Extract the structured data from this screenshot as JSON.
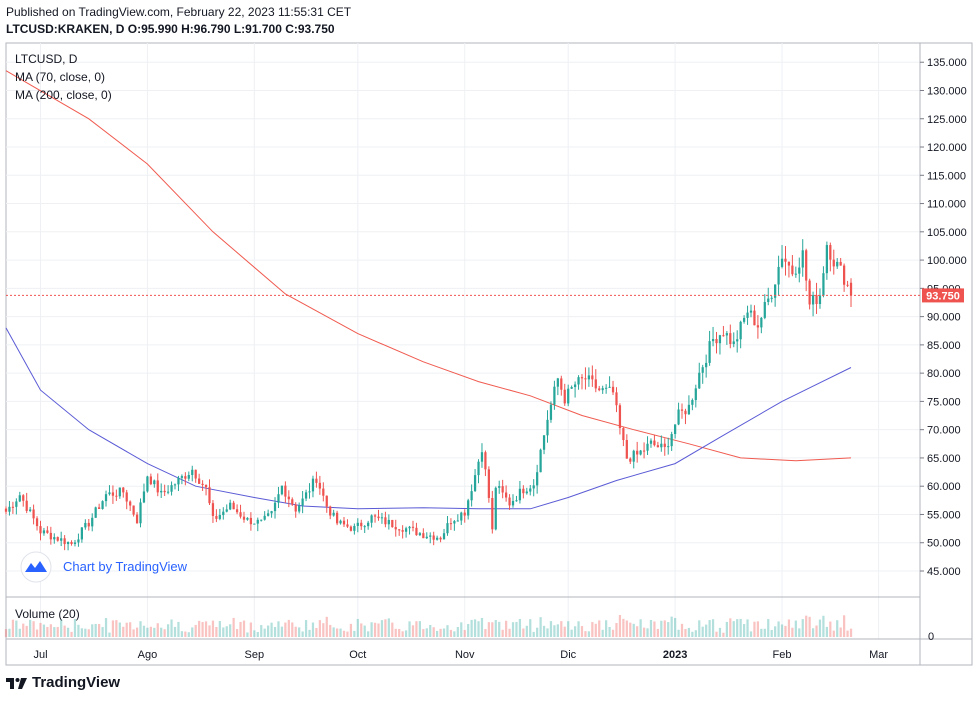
{
  "header": {
    "published": "Published on TradingView.com, February 22, 2023 11:55:31 CET",
    "ohlc": "LTCUSD:KRAKEN, D O:95.990 H:96.790 L:91.700 C:93.750"
  },
  "legend": {
    "symbol": "LTCUSD, D",
    "ma70": "MA (70, close, 0)",
    "ma200": "MA (200, close, 0)",
    "volume": "Volume (20)"
  },
  "watermark": "Chart by TradingView",
  "footer": {
    "brand": "TradingView"
  },
  "price_label": "93.750",
  "colors": {
    "up": "#26a69a",
    "down": "#ef5350",
    "ma70": "#5b5bd6",
    "ma200": "#f05a4f",
    "grid": "#eef0f4",
    "axis": "#787b86",
    "last": "#ef5350"
  },
  "chart_data": {
    "type": "candlestick",
    "y_ticks": [
      "135.000",
      "130.000",
      "125.000",
      "120.000",
      "115.000",
      "110.000",
      "105.000",
      "100.000",
      "95.000",
      "90.000",
      "85.000",
      "80.000",
      "75.000",
      "70.000",
      "65.000",
      "60.000",
      "55.000",
      "50.000",
      "45.000"
    ],
    "ylim": [
      40.4,
      138.4
    ],
    "x_ticks": [
      {
        "label": "Jul",
        "date": "2022-07-01"
      },
      {
        "label": "Ago",
        "date": "2022-08-01"
      },
      {
        "label": "Sep",
        "date": "2022-09-01"
      },
      {
        "label": "Oct",
        "date": "2022-10-01"
      },
      {
        "label": "Nov",
        "date": "2022-11-01"
      },
      {
        "label": "Dic",
        "date": "2022-12-01"
      },
      {
        "label": "2023",
        "date": "2023-01-01"
      },
      {
        "label": "Feb",
        "date": "2023-02-01"
      },
      {
        "label": "Mar",
        "date": "2023-03-01"
      }
    ],
    "xlim": [
      "2022-06-21",
      "2023-03-13"
    ],
    "last_close": 93.75,
    "volume_axis_label": "0",
    "ohlc_keypoints": [
      {
        "date": "2022-06-21",
        "close": 55.5
      },
      {
        "date": "2022-06-25",
        "close": 58.5
      },
      {
        "date": "2022-07-01",
        "close": 52.0
      },
      {
        "date": "2022-07-05",
        "close": 51.0
      },
      {
        "date": "2022-07-10",
        "close": 49.8
      },
      {
        "date": "2022-07-15",
        "close": 53.5
      },
      {
        "date": "2022-07-20",
        "close": 58.5
      },
      {
        "date": "2022-07-25",
        "close": 59.0
      },
      {
        "date": "2022-07-29",
        "close": 54.0
      },
      {
        "date": "2022-08-01",
        "close": 62.0
      },
      {
        "date": "2022-08-05",
        "close": 58.5
      },
      {
        "date": "2022-08-10",
        "close": 61.0
      },
      {
        "date": "2022-08-14",
        "close": 63.0
      },
      {
        "date": "2022-08-18",
        "close": 59.5
      },
      {
        "date": "2022-08-20",
        "close": 54.0
      },
      {
        "date": "2022-08-25",
        "close": 56.5
      },
      {
        "date": "2022-08-30",
        "close": 54.0
      },
      {
        "date": "2022-09-03",
        "close": 53.5
      },
      {
        "date": "2022-09-06",
        "close": 55.0
      },
      {
        "date": "2022-09-09",
        "close": 60.0
      },
      {
        "date": "2022-09-13",
        "close": 56.0
      },
      {
        "date": "2022-09-15",
        "close": 57.5
      },
      {
        "date": "2022-09-19",
        "close": 61.5
      },
      {
        "date": "2022-09-22",
        "close": 56.5
      },
      {
        "date": "2022-09-25",
        "close": 53.5
      },
      {
        "date": "2022-09-30",
        "close": 52.5
      },
      {
        "date": "2022-10-05",
        "close": 54.5
      },
      {
        "date": "2022-10-10",
        "close": 53.5
      },
      {
        "date": "2022-10-15",
        "close": 52.5
      },
      {
        "date": "2022-10-20",
        "close": 51.5
      },
      {
        "date": "2022-10-25",
        "close": 51.0
      },
      {
        "date": "2022-10-28",
        "close": 54.0
      },
      {
        "date": "2022-11-01",
        "close": 55.5
      },
      {
        "date": "2022-11-04",
        "close": 62.0
      },
      {
        "date": "2022-11-06",
        "close": 67.0
      },
      {
        "date": "2022-11-08",
        "close": 58.0
      },
      {
        "date": "2022-11-09",
        "close": 52.0
      },
      {
        "date": "2022-11-10",
        "close": 60.0
      },
      {
        "date": "2022-11-14",
        "close": 57.0
      },
      {
        "date": "2022-11-18",
        "close": 59.5
      },
      {
        "date": "2022-11-21",
        "close": 60.5
      },
      {
        "date": "2022-11-25",
        "close": 72.0
      },
      {
        "date": "2022-11-28",
        "close": 79.0
      },
      {
        "date": "2022-11-30",
        "close": 75.5
      },
      {
        "date": "2022-12-03",
        "close": 78.0
      },
      {
        "date": "2022-12-06",
        "close": 79.0
      },
      {
        "date": "2022-12-10",
        "close": 77.0
      },
      {
        "date": "2022-12-14",
        "close": 76.5
      },
      {
        "date": "2022-12-16",
        "close": 70.0
      },
      {
        "date": "2022-12-18",
        "close": 65.0
      },
      {
        "date": "2022-12-21",
        "close": 65.5
      },
      {
        "date": "2022-12-25",
        "close": 67.5
      },
      {
        "date": "2022-12-29",
        "close": 66.5
      },
      {
        "date": "2023-01-02",
        "close": 72.5
      },
      {
        "date": "2023-01-05",
        "close": 74.0
      },
      {
        "date": "2023-01-08",
        "close": 80.0
      },
      {
        "date": "2023-01-12",
        "close": 86.0
      },
      {
        "date": "2023-01-15",
        "close": 87.5
      },
      {
        "date": "2023-01-18",
        "close": 85.0
      },
      {
        "date": "2023-01-22",
        "close": 91.0
      },
      {
        "date": "2023-01-25",
        "close": 88.5
      },
      {
        "date": "2023-01-29",
        "close": 94.5
      },
      {
        "date": "2023-02-01",
        "close": 101.0
      },
      {
        "date": "2023-02-04",
        "close": 98.0
      },
      {
        "date": "2023-02-07",
        "close": 101.0
      },
      {
        "date": "2023-02-09",
        "close": 92.0
      },
      {
        "date": "2023-02-12",
        "close": 94.0
      },
      {
        "date": "2023-02-14",
        "close": 103.0
      },
      {
        "date": "2023-02-16",
        "close": 100.0
      },
      {
        "date": "2023-02-19",
        "close": 97.0
      },
      {
        "date": "2023-02-21",
        "close": 93.75
      }
    ],
    "ma70": [
      {
        "date": "2022-06-21",
        "value": 88.0
      },
      {
        "date": "2022-07-01",
        "value": 77.0
      },
      {
        "date": "2022-07-15",
        "value": 70.0
      },
      {
        "date": "2022-08-01",
        "value": 64.0
      },
      {
        "date": "2022-08-15",
        "value": 60.0
      },
      {
        "date": "2022-09-01",
        "value": 58.0
      },
      {
        "date": "2022-09-15",
        "value": 56.5
      },
      {
        "date": "2022-10-01",
        "value": 56.0
      },
      {
        "date": "2022-10-20",
        "value": 56.2
      },
      {
        "date": "2022-11-05",
        "value": 56.0
      },
      {
        "date": "2022-11-20",
        "value": 56.0
      },
      {
        "date": "2022-12-01",
        "value": 58.0
      },
      {
        "date": "2022-12-15",
        "value": 61.0
      },
      {
        "date": "2023-01-01",
        "value": 64.0
      },
      {
        "date": "2023-01-15",
        "value": 69.0
      },
      {
        "date": "2023-02-01",
        "value": 75.0
      },
      {
        "date": "2023-02-21",
        "value": 81.0
      }
    ],
    "ma200": [
      {
        "date": "2022-06-21",
        "value": 133.5
      },
      {
        "date": "2022-07-15",
        "value": 125.0
      },
      {
        "date": "2022-08-01",
        "value": 117.0
      },
      {
        "date": "2022-08-20",
        "value": 105.0
      },
      {
        "date": "2022-09-10",
        "value": 94.0
      },
      {
        "date": "2022-10-01",
        "value": 87.0
      },
      {
        "date": "2022-10-20",
        "value": 82.0
      },
      {
        "date": "2022-11-05",
        "value": 78.5
      },
      {
        "date": "2022-11-20",
        "value": 76.0
      },
      {
        "date": "2022-12-05",
        "value": 72.5
      },
      {
        "date": "2022-12-20",
        "value": 70.0
      },
      {
        "date": "2023-01-05",
        "value": 67.5
      },
      {
        "date": "2023-01-20",
        "value": 65.0
      },
      {
        "date": "2023-02-05",
        "value": 64.5
      },
      {
        "date": "2023-02-21",
        "value": 65.0
      }
    ]
  }
}
